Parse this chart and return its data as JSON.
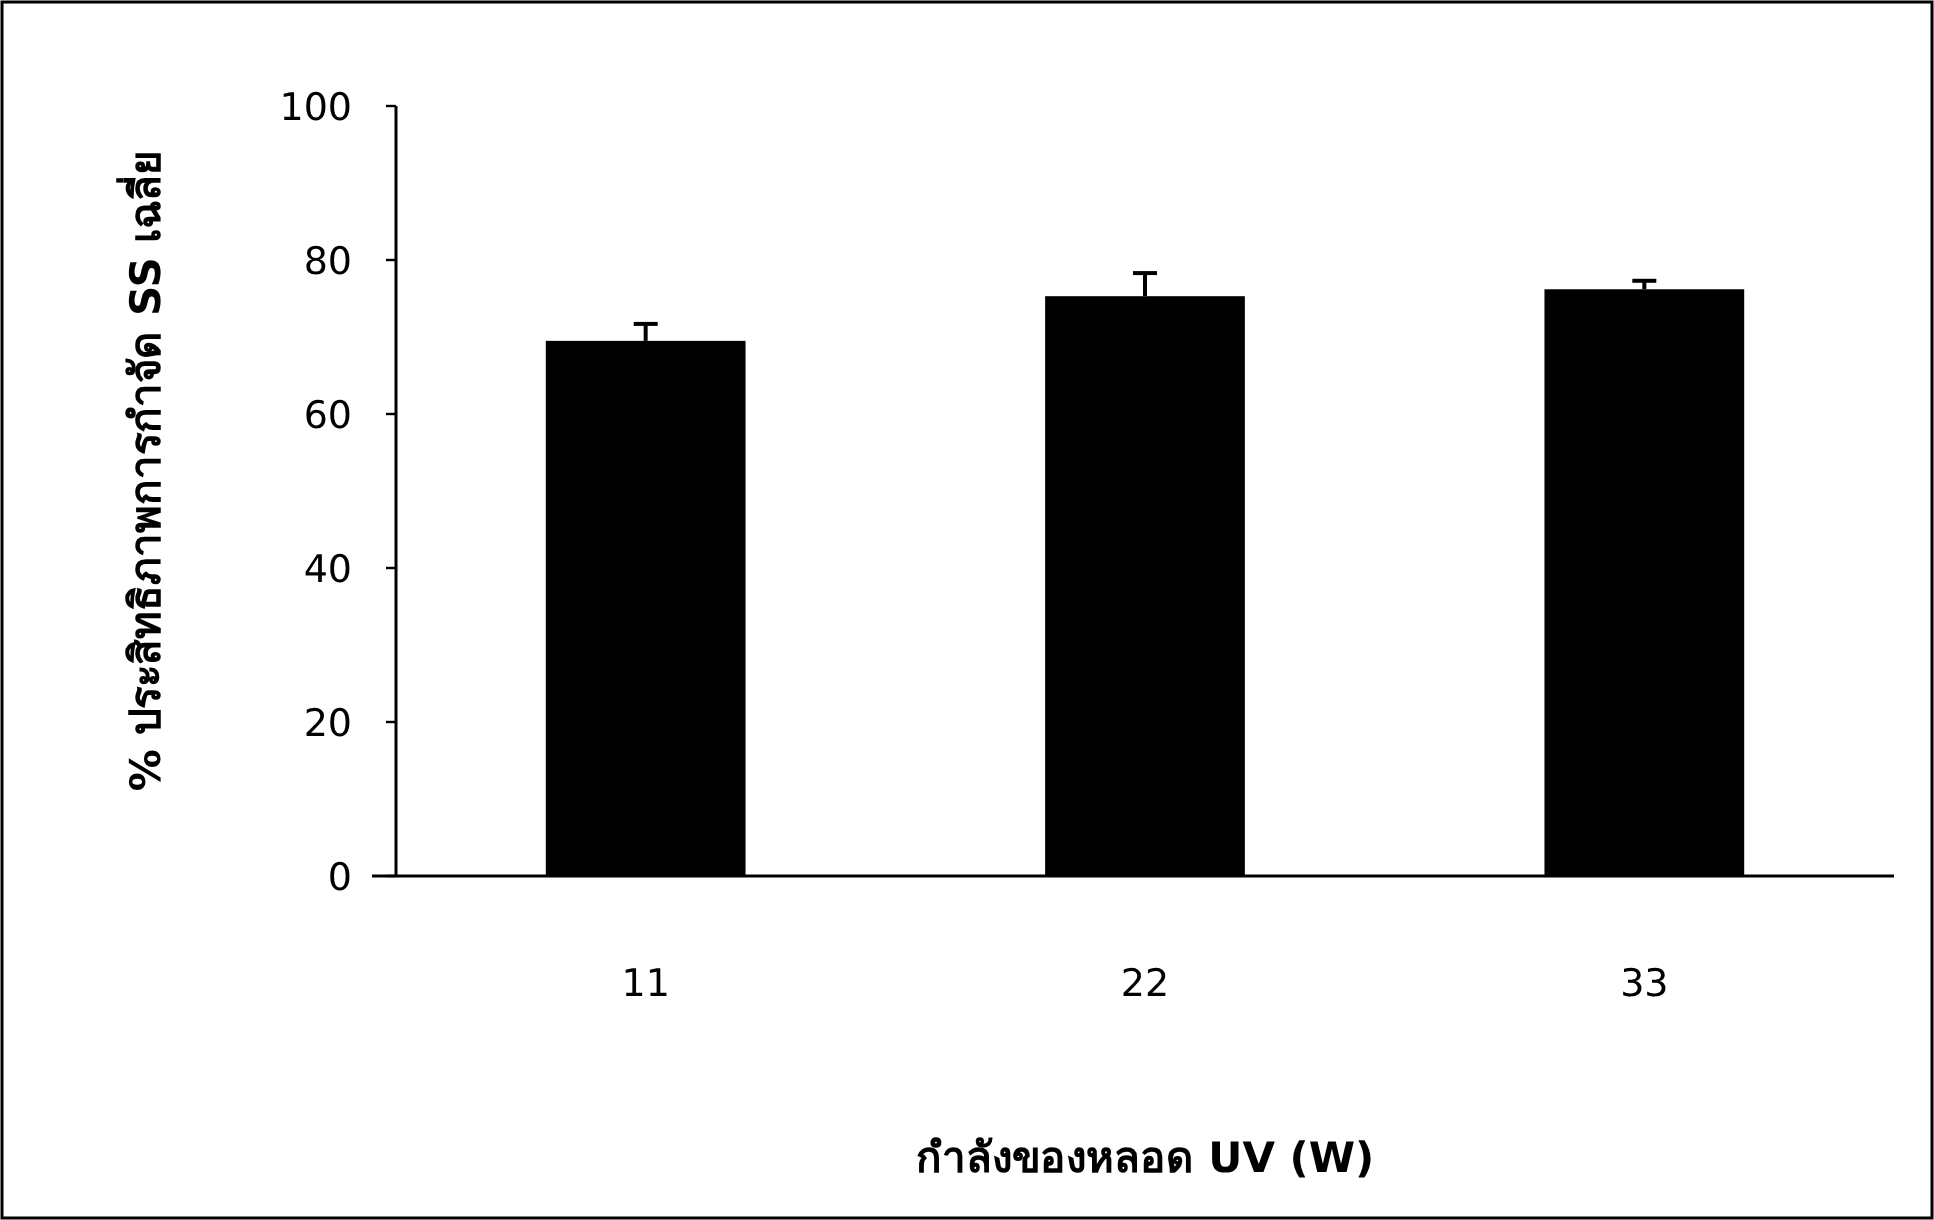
{
  "chart_data": {
    "type": "bar",
    "xlabel": "กำลังของหลอด UV (W)",
    "ylabel": "% ประสิทธิภาพการกำจัด SS เฉลี่ย",
    "categories": [
      "11",
      "22",
      "33"
    ],
    "values": [
      69.5,
      75.3,
      76.2
    ],
    "errors": [
      2.2,
      3,
      1.1
    ],
    "color": "#000000",
    "ylim": [
      0,
      100
    ],
    "yticks": [
      0,
      20,
      40,
      60,
      80,
      100
    ]
  }
}
